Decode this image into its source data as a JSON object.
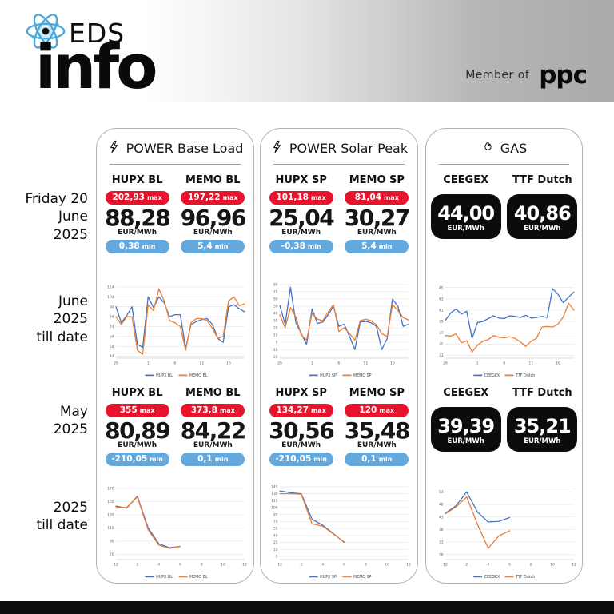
{
  "header": {
    "logo_top": "EDS",
    "logo_main": "info",
    "member_of": "Member of",
    "brand": "ppc"
  },
  "labels": {
    "max": "max",
    "min": "min",
    "unit": "EUR/MWh"
  },
  "rows": {
    "friday": [
      "Friday 20",
      "June",
      "2025"
    ],
    "june": [
      "June",
      "2025",
      "till date"
    ],
    "may": [
      "May",
      "2025"
    ],
    "ytd": [
      "2025",
      "till date"
    ]
  },
  "colors": {
    "accent_red": "#e8142d",
    "accent_blue": "#64a8dc",
    "line_blue": "#4472c4",
    "line_orange": "#ed7d31",
    "card_black": "#0c0c0c"
  },
  "panels": [
    {
      "title": "POWER Base Load",
      "icon": "lightning-icon",
      "today": {
        "cols": [
          {
            "name": "HUPX BL",
            "max": "202,93",
            "value": "88,28",
            "min": "0,38"
          },
          {
            "name": "MEMO BL",
            "max": "197,22",
            "value": "96,96",
            "min": "5,4"
          }
        ]
      },
      "may": {
        "cols": [
          {
            "name": "HUPX BL",
            "max": "355",
            "value": "80,89",
            "min": "-210,05"
          },
          {
            "name": "MEMO BL",
            "max": "373,8",
            "value": "84,22",
            "min": "0,1"
          }
        ]
      }
    },
    {
      "title": "POWER Solar Peak",
      "icon": "lightning-icon",
      "today": {
        "cols": [
          {
            "name": "HUPX SP",
            "max": "101,18",
            "value": "25,04",
            "min": "-0,38"
          },
          {
            "name": "MEMO SP",
            "max": "81,04",
            "value": "30,27",
            "min": "5,4"
          }
        ]
      },
      "may": {
        "cols": [
          {
            "name": "HUPX SP",
            "max": "134,27",
            "value": "30,56",
            "min": "-210,05"
          },
          {
            "name": "MEMO SP",
            "max": "120",
            "value": "35,48",
            "min": "0,1"
          }
        ]
      }
    },
    {
      "title": "GAS",
      "icon": "flame-icon",
      "today": {
        "cols": [
          {
            "name": "CEEGEX",
            "value": "44,00"
          },
          {
            "name": "TTF Dutch",
            "value": "40,86"
          }
        ]
      },
      "may": {
        "cols": [
          {
            "name": "CEEGEX",
            "value": "39,39"
          },
          {
            "name": "TTF Dutch",
            "value": "35,21"
          }
        ]
      }
    }
  ],
  "chart_data": [
    {
      "type": "line",
      "title": "POWER Base Load - June 2025 till date",
      "ymin": 42,
      "ymax": 118,
      "yticks": [
        44,
        54,
        64,
        74,
        84,
        94,
        104,
        114
      ],
      "xslots": 25,
      "xticks": [
        [
          0,
          "26"
        ],
        [
          6,
          "1"
        ],
        [
          11,
          "6"
        ],
        [
          16,
          "11"
        ],
        [
          21,
          "16"
        ]
      ],
      "series": [
        {
          "name": "HUPX BL",
          "color": "#4472c4",
          "values": [
            94,
            78,
            85,
            94,
            56,
            53,
            104,
            93,
            104,
            98,
            84,
            86,
            86,
            52,
            76,
            79,
            81,
            82,
            76,
            62,
            58,
            94,
            96,
            92,
            89
          ]
        },
        {
          "name": "MEMO BL",
          "color": "#ed7d31",
          "values": [
            84,
            76,
            84,
            84,
            50,
            46,
            96,
            90,
            112,
            100,
            80,
            78,
            74,
            50,
            78,
            82,
            82,
            80,
            72,
            62,
            64,
            100,
            104,
            95,
            97
          ]
        }
      ]
    },
    {
      "type": "line",
      "title": "POWER Solar Peak - June 2025 till date",
      "ymin": -22,
      "ymax": 82,
      "yticks": [
        -20,
        -10,
        0,
        10,
        20,
        30,
        40,
        50,
        60,
        70,
        80
      ],
      "xslots": 25,
      "xticks": [
        [
          0,
          "26"
        ],
        [
          6,
          "1"
        ],
        [
          11,
          "6"
        ],
        [
          16,
          "11"
        ],
        [
          21,
          "16"
        ]
      ],
      "series": [
        {
          "name": "HUPX SP",
          "color": "#4472c4",
          "values": [
            51,
            25,
            76,
            27,
            12,
            -3,
            46,
            26,
            28,
            38,
            50,
            22,
            25,
            8,
            -10,
            28,
            29,
            27,
            22,
            -10,
            5,
            60,
            50,
            22,
            25
          ]
        },
        {
          "name": "MEMO SP",
          "color": "#ed7d31",
          "values": [
            38,
            20,
            48,
            35,
            10,
            3,
            40,
            32,
            30,
            42,
            52,
            15,
            20,
            12,
            3,
            30,
            32,
            30,
            24,
            12,
            8,
            52,
            44,
            34,
            31
          ]
        }
      ]
    },
    {
      "type": "line",
      "title": "GAS - June 2025 till date",
      "ymin": 32.5,
      "ymax": 45.8,
      "yticks": [
        33,
        35,
        37,
        39,
        41,
        43,
        45
      ],
      "xslots": 25,
      "xticks": [
        [
          0,
          "26"
        ],
        [
          6,
          "1"
        ],
        [
          11,
          "6"
        ],
        [
          16,
          "11"
        ],
        [
          21,
          "16"
        ]
      ],
      "series": [
        {
          "name": "CEEGEX",
          "color": "#4472c4",
          "values": [
            39.2,
            40.5,
            41.2,
            40.3,
            40.8,
            36,
            38.8,
            39,
            39.5,
            40,
            39.6,
            39.5,
            40,
            39.9,
            39.7,
            40.1,
            39.6,
            39.7,
            39.9,
            39.7,
            44.8,
            43.8,
            42.3,
            43.3,
            44.2
          ]
        },
        {
          "name": "TTF Dutch",
          "color": "#ed7d31",
          "values": [
            36.5,
            36.4,
            36.8,
            35.2,
            35.6,
            33.6,
            34.8,
            35.5,
            35.8,
            36.5,
            36.2,
            36.1,
            36.3,
            36,
            35.4,
            34.6,
            35.5,
            36,
            38,
            38.1,
            38,
            38.5,
            39.8,
            42.2,
            41
          ]
        }
      ]
    },
    {
      "type": "line",
      "title": "POWER Base Load - 2025 till date",
      "ymin": 62,
      "ymax": 176,
      "yticks": [
        70,
        90,
        110,
        130,
        150,
        170
      ],
      "xslots": 13,
      "xticks": [
        [
          0,
          "12"
        ],
        [
          2,
          "2"
        ],
        [
          4,
          "4"
        ],
        [
          6,
          "6"
        ],
        [
          8,
          "8"
        ],
        [
          10,
          "10"
        ],
        [
          12,
          "12"
        ]
      ],
      "series": [
        {
          "name": "HUPX BL",
          "color": "#4472c4",
          "values": [
            143,
            140,
            158,
            110,
            86,
            80,
            82
          ]
        },
        {
          "name": "MEMO BL",
          "color": "#ed7d31",
          "values": [
            141,
            141,
            157,
            107,
            84,
            79,
            82
          ]
        }
      ]
    },
    {
      "type": "line",
      "title": "POWER Solar Peak - 2025 till date",
      "ymin": -12,
      "ymax": 150,
      "yticks": [
        -5,
        10,
        25,
        40,
        55,
        70,
        85,
        100,
        115,
        130,
        145
      ],
      "xslots": 13,
      "xticks": [
        [
          0,
          "12"
        ],
        [
          2,
          "2"
        ],
        [
          4,
          "4"
        ],
        [
          6,
          "6"
        ],
        [
          8,
          "8"
        ],
        [
          10,
          "10"
        ],
        [
          12,
          "12"
        ]
      ],
      "series": [
        {
          "name": "HUPX SP",
          "color": "#4472c4",
          "values": [
            136,
            132,
            130,
            75,
            62,
            44,
            25
          ]
        },
        {
          "name": "MEMO SP",
          "color": "#ed7d31",
          "values": [
            130,
            130,
            129,
            65,
            60,
            43,
            26
          ]
        }
      ]
    },
    {
      "type": "line",
      "title": "GAS - 2025 till date",
      "ymin": 26,
      "ymax": 56,
      "yticks": [
        28,
        33,
        38,
        43,
        48,
        53
      ],
      "xslots": 13,
      "xticks": [
        [
          0,
          "12"
        ],
        [
          2,
          "2"
        ],
        [
          4,
          "4"
        ],
        [
          6,
          "6"
        ],
        [
          8,
          "8"
        ],
        [
          10,
          "10"
        ],
        [
          12,
          "12"
        ]
      ],
      "series": [
        {
          "name": "CEEGEX",
          "color": "#4472c4",
          "values": [
            44.5,
            47.5,
            53,
            45,
            41,
            41.3,
            42.8
          ]
        },
        {
          "name": "TTF Dutch",
          "color": "#ed7d31",
          "values": [
            44.3,
            47,
            51,
            40,
            30.5,
            35.5,
            37.5
          ]
        }
      ]
    }
  ]
}
